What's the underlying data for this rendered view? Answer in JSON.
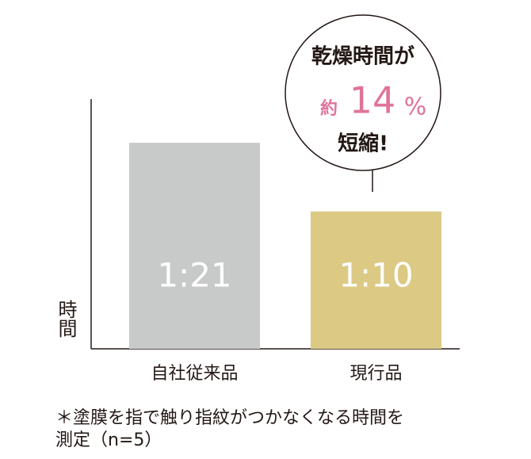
{
  "chart_data": {
    "type": "bar",
    "ylabel": "時間",
    "categories": [
      "自社従来品",
      "現行品"
    ],
    "values": [
      81,
      70
    ],
    "value_labels": [
      "1:21",
      "1:10"
    ],
    "colors": [
      "#c8c9c9",
      "#dcc984"
    ],
    "ylim": [
      48,
      88
    ],
    "annotations": [
      "乾燥時間が",
      "約",
      "14",
      "%",
      "短縮!"
    ],
    "annotation_color": "#e0739a",
    "notes": [
      "＊塗膜を指で触り指紋がつかなくなる時間を",
      "測定（n=5）"
    ]
  }
}
